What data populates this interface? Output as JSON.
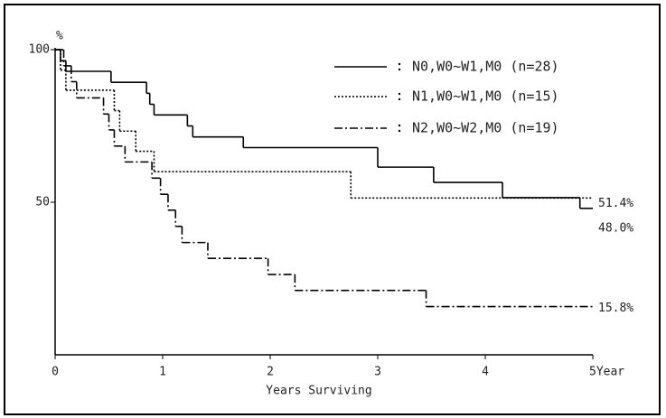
{
  "chart_data": {
    "type": "step",
    "ylabel": "%",
    "xlabel": "Years Surviving",
    "xlim": [
      0,
      5
    ],
    "ylim": [
      0,
      100
    ],
    "xticks": [
      0,
      1,
      2,
      3,
      4,
      {
        "value": 5,
        "label": "5Year"
      }
    ],
    "yticks": [
      50,
      100
    ],
    "series": [
      {
        "name": "N0,W0~W1,M0 (n=28)",
        "color": "#000000",
        "dash": "none",
        "x": [
          0,
          0.05,
          0.1,
          0.52,
          0.85,
          0.88,
          0.92,
          1.23,
          1.28,
          1.75,
          3.0,
          3.52,
          4.16,
          4.88,
          5
        ],
        "values": [
          100,
          96.4,
          92.9,
          89.3,
          85.7,
          82.1,
          78.6,
          75,
          71.4,
          67.9,
          61.5,
          56.5,
          51.5,
          48,
          48
        ],
        "end_label": {
          "value": 48,
          "label": "48.0%"
        }
      },
      {
        "name": "N1,W0~W1,M0 (n=15)",
        "color": "#000000",
        "dash": "2,2",
        "x": [
          0,
          0.05,
          0.1,
          0.55,
          0.6,
          0.75,
          0.92,
          2.75,
          5
        ],
        "values": [
          100,
          93.3,
          86.7,
          80,
          73.3,
          66.7,
          60,
          51.4,
          51.4
        ],
        "end_label": {
          "value": 51.4,
          "label": "51.4%"
        }
      },
      {
        "name": "N2,W0~W2,M0 (n=19)",
        "color": "#000000",
        "dash": "9,3,2,3",
        "x": [
          0,
          0.08,
          0.15,
          0.2,
          0.45,
          0.5,
          0.55,
          0.65,
          0.9,
          0.98,
          1.05,
          1.12,
          1.18,
          1.42,
          1.98,
          2.23,
          3.45,
          5
        ],
        "values": [
          100,
          94.7,
          89.5,
          84.2,
          78.9,
          73.7,
          68.4,
          63.2,
          57.9,
          52.6,
          47.4,
          42.1,
          36.8,
          31.6,
          26.3,
          21.1,
          15.8,
          15.8
        ],
        "end_label": {
          "value": 15.8,
          "label": "15.8%"
        }
      }
    ]
  }
}
